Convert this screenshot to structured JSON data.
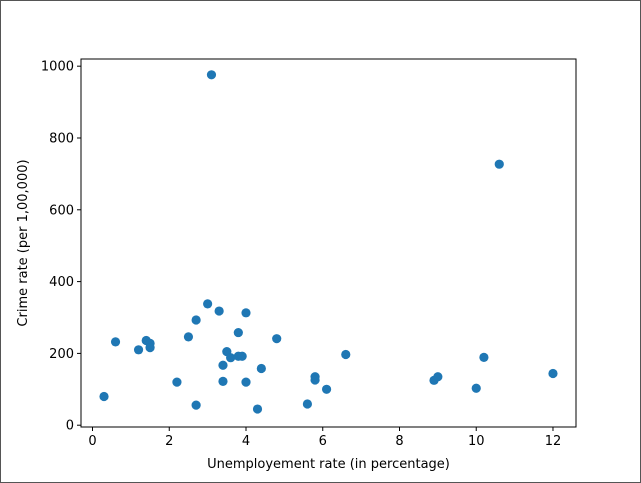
{
  "chart_data": {
    "type": "scatter",
    "title": "",
    "xlabel": "Unemployement rate (in percentage)",
    "ylabel": "Crime rate (per 1,00,000)",
    "xlim": [
      -0.3,
      12.6
    ],
    "ylim": [
      -5,
      1020
    ],
    "xticks": [
      0,
      2,
      4,
      6,
      8,
      10,
      12
    ],
    "yticks": [
      0,
      200,
      400,
      600,
      800,
      1000
    ],
    "xtick_labels": [
      "0",
      "2",
      "4",
      "6",
      "8",
      "10",
      "12"
    ],
    "ytick_labels": [
      "0",
      "200",
      "400",
      "600",
      "800",
      "1000"
    ],
    "grid": false,
    "marker_color": "#1f77b4",
    "points": [
      {
        "x": 0.3,
        "y": 80
      },
      {
        "x": 0.6,
        "y": 232
      },
      {
        "x": 1.2,
        "y": 210
      },
      {
        "x": 1.4,
        "y": 236
      },
      {
        "x": 1.5,
        "y": 228
      },
      {
        "x": 1.5,
        "y": 216
      },
      {
        "x": 2.2,
        "y": 120
      },
      {
        "x": 2.5,
        "y": 246
      },
      {
        "x": 2.7,
        "y": 293
      },
      {
        "x": 2.7,
        "y": 56
      },
      {
        "x": 3.0,
        "y": 338
      },
      {
        "x": 3.1,
        "y": 976
      },
      {
        "x": 3.3,
        "y": 318
      },
      {
        "x": 3.4,
        "y": 167
      },
      {
        "x": 3.4,
        "y": 122
      },
      {
        "x": 3.5,
        "y": 205
      },
      {
        "x": 3.6,
        "y": 188
      },
      {
        "x": 3.8,
        "y": 258
      },
      {
        "x": 3.8,
        "y": 192
      },
      {
        "x": 3.9,
        "y": 192
      },
      {
        "x": 4.0,
        "y": 313
      },
      {
        "x": 4.0,
        "y": 120
      },
      {
        "x": 4.3,
        "y": 45
      },
      {
        "x": 4.4,
        "y": 158
      },
      {
        "x": 4.8,
        "y": 241
      },
      {
        "x": 5.6,
        "y": 59
      },
      {
        "x": 5.8,
        "y": 135
      },
      {
        "x": 5.8,
        "y": 126
      },
      {
        "x": 6.1,
        "y": 100
      },
      {
        "x": 6.6,
        "y": 197
      },
      {
        "x": 8.9,
        "y": 125
      },
      {
        "x": 9.0,
        "y": 135
      },
      {
        "x": 10.0,
        "y": 103
      },
      {
        "x": 10.2,
        "y": 189
      },
      {
        "x": 10.6,
        "y": 727
      },
      {
        "x": 12.0,
        "y": 144
      }
    ]
  }
}
